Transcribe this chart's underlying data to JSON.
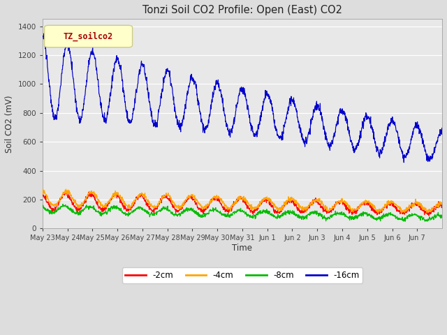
{
  "title": "Tonzi Soil CO2 Profile: Open (East) CO2",
  "ylabel": "Soil CO2 (mV)",
  "xlabel": "Time",
  "legend_label": "TZ_soilco2",
  "ylim": [
    0,
    1450
  ],
  "yticks": [
    0,
    200,
    400,
    600,
    800,
    1000,
    1200,
    1400
  ],
  "series_colors": {
    "-2cm": "#ff0000",
    "-4cm": "#ffa500",
    "-8cm": "#00bb00",
    "-16cm": "#0000cc"
  },
  "bg_color": "#dddddd",
  "axes_bg": "#e8e8e8",
  "legend_box_facecolor": "#ffffcc",
  "legend_box_edgecolor": "#cccc88",
  "legend_text_color": "#aa0000",
  "x_tick_labels": [
    "May 23",
    "May 24",
    "May 25",
    "May 26",
    "May 27",
    "May 28",
    "May 29",
    "May 30",
    "May 31",
    "Jun 1",
    "Jun 2",
    "Jun 3",
    "Jun 4",
    "Jun 5",
    "Jun 6",
    "Jun 7"
  ],
  "n_days": 16
}
